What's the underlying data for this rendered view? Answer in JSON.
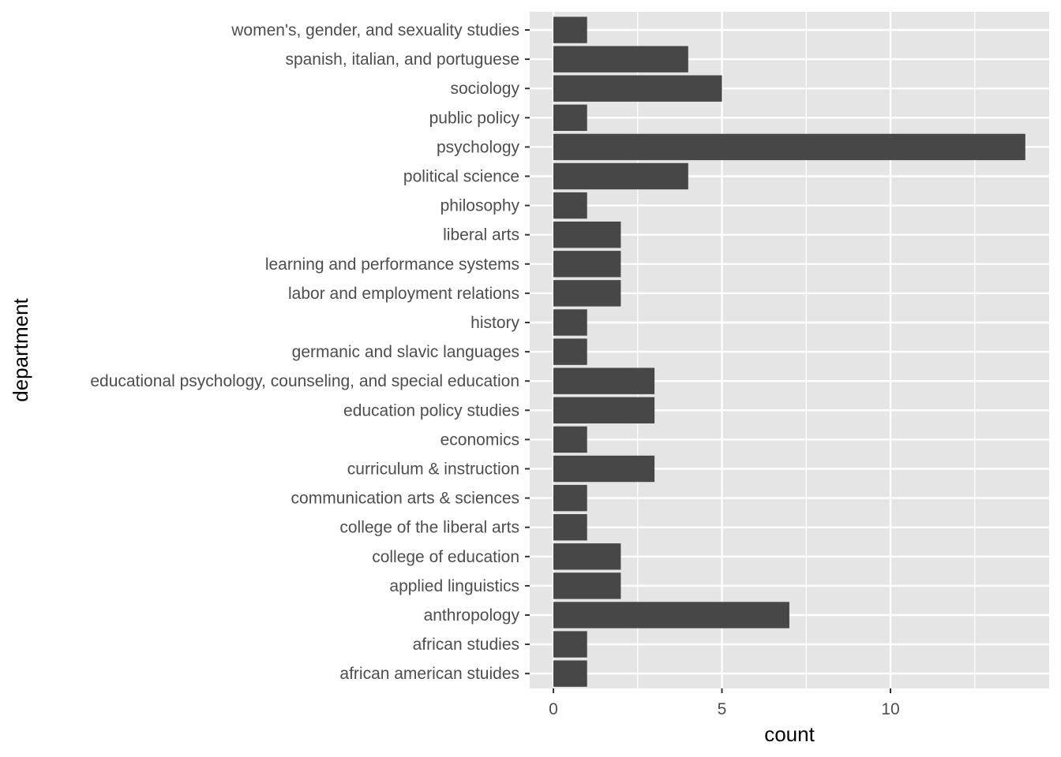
{
  "chart_data": {
    "type": "bar",
    "orientation": "horizontal",
    "title": "",
    "xlabel": "count",
    "ylabel": "department",
    "xlim": [
      0,
      14.7
    ],
    "x_ticks": [
      0,
      5,
      10
    ],
    "x_tick_labels": [
      "0",
      "5",
      "10"
    ],
    "grid": true,
    "colors": {
      "bar": "#474747",
      "panel": "#e5e5e5",
      "grid": "#ffffff",
      "tick": "#333333",
      "tick_label": "#4d4d4d"
    },
    "categories": [
      "african american stuides",
      "african studies",
      "anthropology",
      "applied linguistics",
      "college of education",
      "college of the liberal arts",
      "communication arts & sciences",
      "curriculum & instruction",
      "economics",
      "education policy studies",
      "educational psychology, counseling, and special education",
      "germanic and slavic languages",
      "history",
      "labor and employment relations",
      "learning and performance systems",
      "liberal arts",
      "philosophy",
      "political science",
      "psychology",
      "public policy",
      "sociology",
      "spanish, italian, and portuguese",
      "women's, gender, and sexuality studies"
    ],
    "values": [
      1,
      1,
      7,
      2,
      2,
      1,
      1,
      3,
      1,
      3,
      3,
      1,
      1,
      2,
      2,
      2,
      1,
      4,
      14,
      1,
      5,
      4,
      1
    ]
  }
}
